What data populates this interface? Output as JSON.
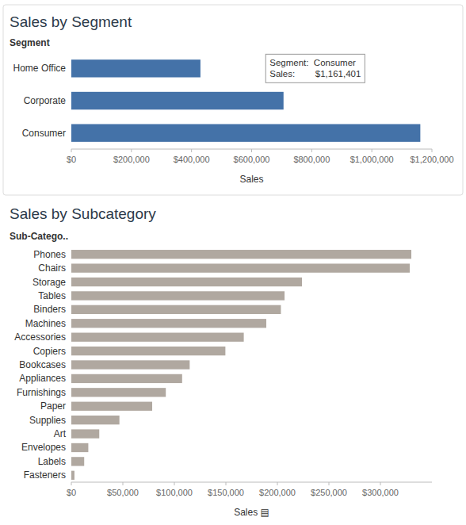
{
  "chart_data": [
    {
      "type": "bar",
      "orientation": "horizontal",
      "title": "Sales by Segment",
      "ylabel": "Segment",
      "xlabel": "Sales",
      "categories": [
        "Consumer",
        "Corporate",
        "Home Office"
      ],
      "values": [
        1161401,
        706166,
        429654
      ],
      "color": "#4472a8",
      "xlim": [
        0,
        1200000
      ],
      "xticks": [
        {
          "value": 0,
          "label": "$0"
        },
        {
          "value": 200000,
          "label": "$200,000"
        },
        {
          "value": 400000,
          "label": "$400,000"
        },
        {
          "value": 600000,
          "label": "$600,000"
        },
        {
          "value": 800000,
          "label": "$800,000"
        },
        {
          "value": 1000000,
          "label": "$1,000,000"
        },
        {
          "value": 1200000,
          "label": "$1,200,000"
        }
      ],
      "grid": false,
      "annotation": "Segment:  Consumer\nSales:        $1,161,401"
    },
    {
      "type": "bar",
      "orientation": "horizontal",
      "title": "Sales by Subcategory",
      "ylabel": "Sub-Catego..",
      "xlabel": "Sales ▤",
      "categories": [
        "Phones",
        "Chairs",
        "Storage",
        "Tables",
        "Binders",
        "Machines",
        "Accessories",
        "Copiers",
        "Bookcases",
        "Appliances",
        "Furnishings",
        "Paper",
        "Supplies",
        "Art",
        "Envelopes",
        "Labels",
        "Fasteners"
      ],
      "values": [
        330007,
        328449,
        223844,
        206966,
        203413,
        189239,
        167380,
        149528,
        114880,
        107532,
        91705,
        78479,
        46674,
        27119,
        16476,
        12486,
        3024
      ],
      "color": "#b0a8a0",
      "xlim": [
        0,
        350000
      ],
      "xticks": [
        {
          "value": 0,
          "label": "$0"
        },
        {
          "value": 50000,
          "label": "$50,000"
        },
        {
          "value": 100000,
          "label": "$100,000"
        },
        {
          "value": 150000,
          "label": "$150,000"
        },
        {
          "value": 200000,
          "label": "$200,000"
        },
        {
          "value": 250000,
          "label": "$250,000"
        },
        {
          "value": 300000,
          "label": "$300,000"
        }
      ],
      "grid": false
    }
  ]
}
